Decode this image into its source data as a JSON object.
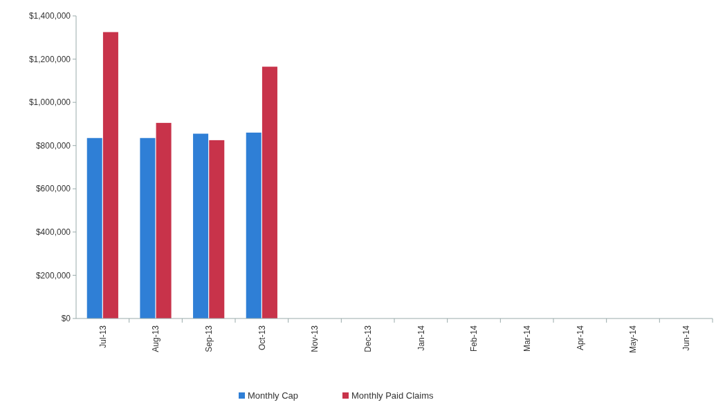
{
  "chart_data": {
    "type": "bar",
    "categories": [
      "Jul-13",
      "Aug-13",
      "Sep-13",
      "Oct-13",
      "Nov-13",
      "Dec-13",
      "Jan-14",
      "Feb-14",
      "Mar-14",
      "Apr-14",
      "May-14",
      "Jun-14"
    ],
    "series": [
      {
        "name": "Monthly Cap",
        "color": "#2f7fd6",
        "values": [
          835000,
          835000,
          855000,
          860000,
          null,
          null,
          null,
          null,
          null,
          null,
          null,
          null
        ]
      },
      {
        "name": "Monthly Paid Claims",
        "color": "#c8334a",
        "values": [
          1325000,
          905000,
          825000,
          1165000,
          null,
          null,
          null,
          null,
          null,
          null,
          null,
          null
        ]
      }
    ],
    "ylim": [
      0,
      1400000
    ],
    "yticks": [
      {
        "value": 0,
        "label": "$0"
      },
      {
        "value": 200000,
        "label": "$200,000"
      },
      {
        "value": 400000,
        "label": "$400,000"
      },
      {
        "value": 600000,
        "label": "$600,000"
      },
      {
        "value": 800000,
        "label": "$800,000"
      },
      {
        "value": 1000000,
        "label": "$1,000,000"
      },
      {
        "value": 1200000,
        "label": "$1,200,000"
      },
      {
        "value": 1400000,
        "label": "$1,400,000"
      }
    ],
    "legend": "bottom"
  }
}
